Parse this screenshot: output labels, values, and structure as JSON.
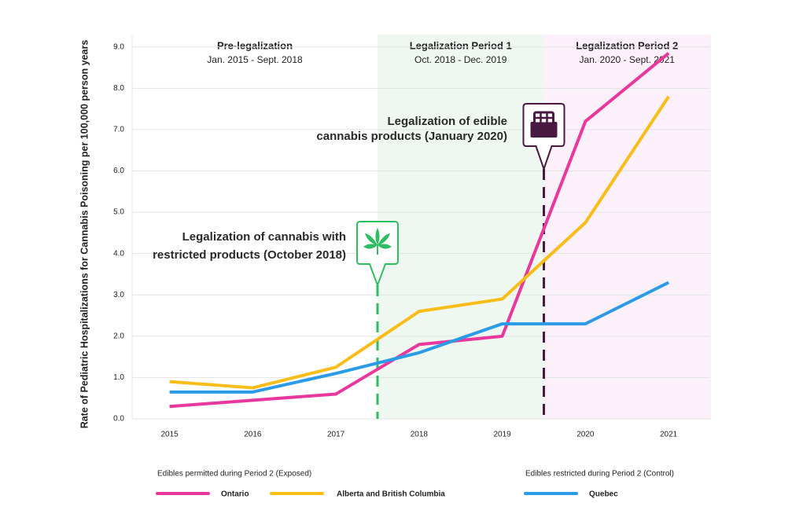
{
  "chart_data": {
    "type": "line",
    "y_label": "Rate of Pediatric Hospitalizations for Cannabis Poisoning per 100,000 person years",
    "x": [
      2015,
      2016,
      2017,
      2018,
      2019,
      2020,
      2021
    ],
    "xlim": [
      2014.55,
      2021.5
    ],
    "xticks": [
      2015,
      2016,
      2017,
      2018,
      2019,
      2020,
      2021
    ],
    "ylim": [
      0,
      9.3
    ],
    "yticks": [
      {
        "value": 0,
        "label": "0.0"
      },
      {
        "value": 1,
        "label": "1.0"
      },
      {
        "value": 2,
        "label": "2.0"
      },
      {
        "value": 3,
        "label": "3.0"
      },
      {
        "value": 4,
        "label": "4.0"
      },
      {
        "value": 5,
        "label": "5.0"
      },
      {
        "value": 6,
        "label": "6.0"
      },
      {
        "value": 7,
        "label": "7.0"
      },
      {
        "value": 8,
        "label": "8.0"
      },
      {
        "value": 9,
        "label": "9.0"
      }
    ],
    "grid": true,
    "series": [
      {
        "name": "Ontario",
        "color": "#e8389e",
        "values": [
          0.3,
          0.45,
          0.6,
          1.8,
          2.0,
          7.2,
          8.85
        ]
      },
      {
        "name": "Alberta and British Columbia",
        "color": "#f9bd1a",
        "values": [
          0.9,
          0.75,
          1.25,
          2.6,
          2.9,
          4.75,
          7.8
        ]
      },
      {
        "name": "Quebec",
        "color": "#2b9be6",
        "values": [
          0.65,
          0.65,
          1.1,
          1.6,
          2.3,
          2.3,
          3.3
        ]
      }
    ],
    "periods": [
      {
        "title": "Pre-legalization",
        "subtitle": "Jan. 2015 - Sept. 2018"
      },
      {
        "title": "Legalization Period 1",
        "subtitle": "Oct. 2018 - Dec. 2019"
      },
      {
        "title": "Legalization Period 2",
        "subtitle": "Jan. 2020 - Sept. 2021"
      }
    ],
    "annotations": [
      {
        "lines": [
          "Legalization of cannabis with",
          "restricted products (October 2018)"
        ]
      },
      {
        "lines": [
          "Legalization of edible",
          "cannabis products (January 2020)"
        ]
      }
    ],
    "legend_groups": [
      "Edibles permitted during Period 2 (Exposed)",
      "Edibles restricted during Period 2 (Control)"
    ]
  }
}
